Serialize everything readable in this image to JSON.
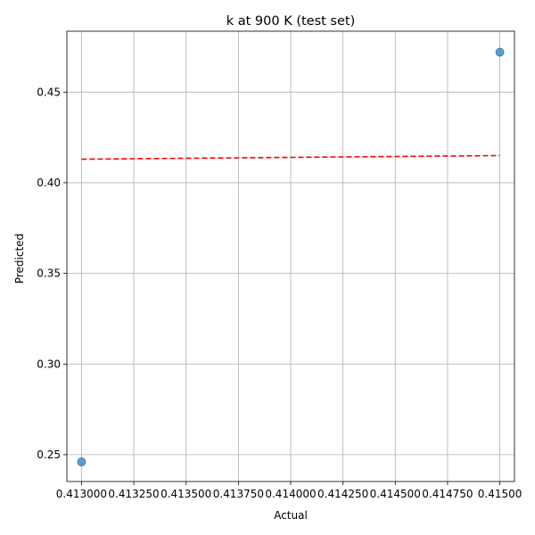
{
  "chart_data": {
    "type": "scatter",
    "title": "k at 900 K (test set)",
    "xlabel": "Actual",
    "ylabel": "Predicted",
    "xlim": [
      0.41293,
      0.41507
    ],
    "ylim": [
      0.2352,
      0.4836
    ],
    "x_ticks": [
      0.413,
      0.41325,
      0.4135,
      0.41375,
      0.414,
      0.41425,
      0.4145,
      0.41475,
      0.415
    ],
    "x_tick_labels": [
      "0.413000",
      "0.413250",
      "0.413500",
      "0.413750",
      "0.414000",
      "0.414250",
      "0.414500",
      "0.414750",
      "0.41500"
    ],
    "y_ticks": [
      0.25,
      0.3,
      0.35,
      0.4,
      0.45
    ],
    "y_tick_labels": [
      "0.25",
      "0.30",
      "0.35",
      "0.40",
      "0.45"
    ],
    "grid": true,
    "points": [
      {
        "x": 0.413,
        "y": 0.246
      },
      {
        "x": 0.415,
        "y": 0.472
      }
    ],
    "reference_line": {
      "x": [
        0.413,
        0.415
      ],
      "y": [
        0.413,
        0.415
      ],
      "style": "dashed"
    },
    "colors": {
      "points": "#1f77b4",
      "reference_line": "#ff0000",
      "grid": "#b0b0b0"
    }
  }
}
